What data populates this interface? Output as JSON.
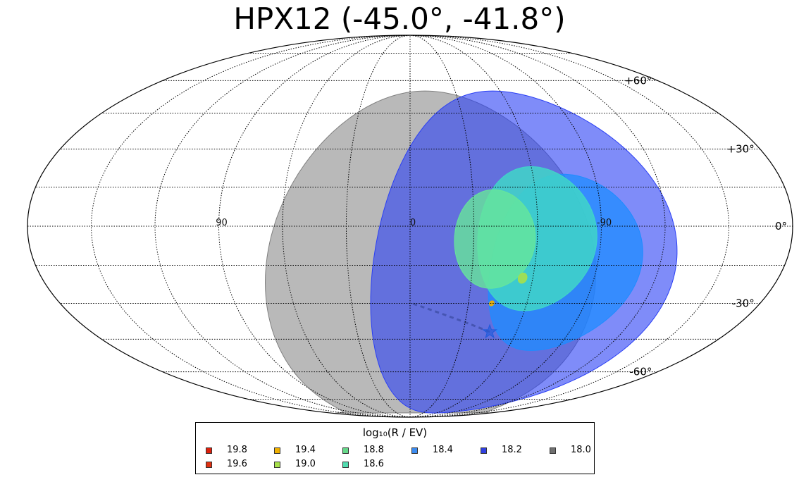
{
  "title": "HPX12 (-45.0°, -41.8°)",
  "chart_data": {
    "type": "scatter",
    "projection": "mollweide",
    "title": "HPX12 (-45.0°, -41.8°)",
    "lat_ticks": [
      {
        "value": 60,
        "label": "+60°"
      },
      {
        "value": 30,
        "label": "+30°"
      },
      {
        "value": 0,
        "label": "0°"
      },
      {
        "value": -30,
        "label": "-30°"
      },
      {
        "value": -60,
        "label": "-60°"
      }
    ],
    "lon_ticks": [
      {
        "value": 90,
        "label": "90"
      },
      {
        "value": 0,
        "label": "0"
      },
      {
        "value": -90,
        "label": "-90"
      }
    ],
    "grid": true,
    "regions": [
      {
        "log10_R": 18.0,
        "color": "#808080",
        "center_lon": -10,
        "center_lat": -20,
        "radius_deg": 75,
        "opacity": 0.55
      },
      {
        "log10_R": 18.2,
        "color": "#2a3ff5",
        "center_lon": -55,
        "center_lat": -15,
        "radius_deg": 70,
        "opacity": 0.6
      },
      {
        "log10_R": 18.4,
        "color": "#1e8cff",
        "center_lon": -75,
        "center_lat": -15,
        "radius_deg": 35,
        "opacity": 0.75
      },
      {
        "log10_R": 18.6,
        "color": "#40d6c8",
        "center_lon": -60,
        "center_lat": -5,
        "radius_deg": 28,
        "opacity": 0.85
      },
      {
        "log10_R": 18.8,
        "color": "#66e69a",
        "center_lon": -40,
        "center_lat": -5,
        "radius_deg": 19,
        "opacity": 0.8
      },
      {
        "log10_R": 19.0,
        "color": "#a6e04a",
        "center_lon": -55,
        "center_lat": -20,
        "radius_deg": 2,
        "opacity": 0.9
      },
      {
        "log10_R": 19.4,
        "color": "#f0b000",
        "center_lon": -42,
        "center_lat": -30,
        "radius_deg": 1,
        "opacity": 0.9
      }
    ],
    "source_marker": {
      "lon": -45.0,
      "lat": -41.8,
      "symbol": "star",
      "color": "#1e5adc"
    },
    "legend": {
      "title": "log₁₀(R / EV)",
      "placement": "bottom-center",
      "entries": [
        {
          "label": "19.8",
          "color": "#dd1f0b"
        },
        {
          "label": "19.6",
          "color": "#e03010"
        },
        {
          "label": "19.4",
          "color": "#f0b000"
        },
        {
          "label": "19.0",
          "color": "#a6e04a"
        },
        {
          "label": "18.8",
          "color": "#66d98a"
        },
        {
          "label": "18.6",
          "color": "#52dcb0"
        },
        {
          "label": "18.4",
          "color": "#3c8cf0"
        },
        {
          "label": "18.2",
          "color": "#3040e0"
        },
        {
          "label": "18.0",
          "color": "#707070"
        }
      ]
    }
  }
}
